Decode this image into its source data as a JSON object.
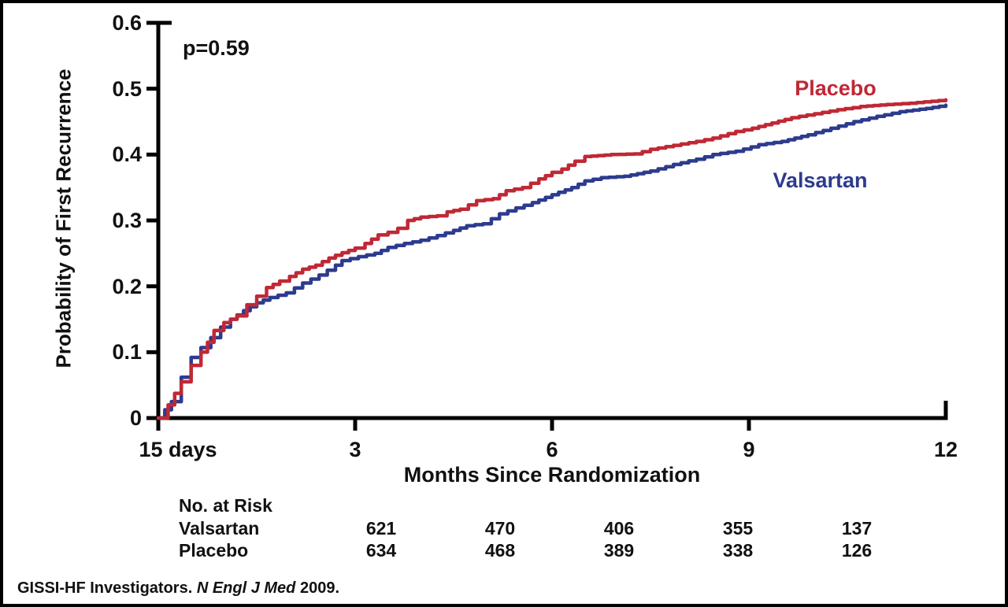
{
  "chart_data": {
    "type": "line",
    "subtype": "kaplan-meier-step",
    "p_value_label": "p=0.59",
    "xlabel": "Months Since Randomization",
    "ylabel": "Probability of First Recurrence",
    "xlim": [
      0,
      12
    ],
    "ylim": [
      0,
      0.6
    ],
    "grid": false,
    "legend_position": "inline-labels",
    "x_ticks": [
      {
        "label": "15 days",
        "month": 0
      },
      {
        "label": "3",
        "month": 3
      },
      {
        "label": "6",
        "month": 6
      },
      {
        "label": "9",
        "month": 9
      },
      {
        "label": "12",
        "month": 12
      }
    ],
    "y_ticks": [
      {
        "label": "0",
        "value": 0
      },
      {
        "label": "0.1",
        "value": 0.1
      },
      {
        "label": "0.2",
        "value": 0.2
      },
      {
        "label": "0.3",
        "value": 0.3
      },
      {
        "label": "0.4",
        "value": 0.4
      },
      {
        "label": "0.5",
        "value": 0.5
      },
      {
        "label": "0.6",
        "value": 0.6
      }
    ],
    "series": [
      {
        "name": "Placebo",
        "color": "#c02836",
        "points": [
          [
            0,
            0
          ],
          [
            0.15,
            0.02
          ],
          [
            0.35,
            0.055
          ],
          [
            0.5,
            0.08
          ],
          [
            0.65,
            0.1
          ],
          [
            0.75,
            0.115
          ],
          [
            0.85,
            0.133
          ],
          [
            1.0,
            0.145
          ],
          [
            1.2,
            0.155
          ],
          [
            1.35,
            0.172
          ],
          [
            1.5,
            0.185
          ],
          [
            1.65,
            0.198
          ],
          [
            1.85,
            0.208
          ],
          [
            2.0,
            0.215
          ],
          [
            2.2,
            0.226
          ],
          [
            2.4,
            0.232
          ],
          [
            2.6,
            0.243
          ],
          [
            2.8,
            0.251
          ],
          [
            3.0,
            0.258
          ],
          [
            3.15,
            0.265
          ],
          [
            3.35,
            0.278
          ],
          [
            3.5,
            0.282
          ],
          [
            3.65,
            0.288
          ],
          [
            3.8,
            0.3
          ],
          [
            4.0,
            0.305
          ],
          [
            4.25,
            0.307
          ],
          [
            4.4,
            0.313
          ],
          [
            4.6,
            0.317
          ],
          [
            4.85,
            0.33
          ],
          [
            5.1,
            0.333
          ],
          [
            5.3,
            0.345
          ],
          [
            5.55,
            0.35
          ],
          [
            5.8,
            0.363
          ],
          [
            6.0,
            0.373
          ],
          [
            6.15,
            0.378
          ],
          [
            6.35,
            0.39
          ],
          [
            6.5,
            0.397
          ],
          [
            6.9,
            0.4
          ],
          [
            7.25,
            0.401
          ],
          [
            7.5,
            0.408
          ],
          [
            7.85,
            0.414
          ],
          [
            8.2,
            0.42
          ],
          [
            8.45,
            0.425
          ],
          [
            8.8,
            0.435
          ],
          [
            9.05,
            0.44
          ],
          [
            9.35,
            0.448
          ],
          [
            9.65,
            0.456
          ],
          [
            10.0,
            0.462
          ],
          [
            10.35,
            0.468
          ],
          [
            10.7,
            0.473
          ],
          [
            11.1,
            0.476
          ],
          [
            11.45,
            0.478
          ],
          [
            12.0,
            0.483
          ]
        ]
      },
      {
        "name": "Valsartan",
        "color": "#2d3b8e",
        "points": [
          [
            0,
            0
          ],
          [
            0.2,
            0.025
          ],
          [
            0.35,
            0.062
          ],
          [
            0.5,
            0.092
          ],
          [
            0.65,
            0.107
          ],
          [
            0.8,
            0.122
          ],
          [
            0.95,
            0.138
          ],
          [
            1.1,
            0.15
          ],
          [
            1.3,
            0.163
          ],
          [
            1.5,
            0.175
          ],
          [
            1.7,
            0.183
          ],
          [
            1.95,
            0.19
          ],
          [
            2.2,
            0.205
          ],
          [
            2.45,
            0.217
          ],
          [
            2.7,
            0.232
          ],
          [
            2.8,
            0.239
          ],
          [
            3.05,
            0.245
          ],
          [
            3.3,
            0.25
          ],
          [
            3.5,
            0.259
          ],
          [
            3.75,
            0.265
          ],
          [
            4.0,
            0.27
          ],
          [
            4.25,
            0.277
          ],
          [
            4.5,
            0.285
          ],
          [
            4.7,
            0.292
          ],
          [
            4.95,
            0.295
          ],
          [
            5.2,
            0.31
          ],
          [
            5.45,
            0.319
          ],
          [
            5.7,
            0.327
          ],
          [
            6.0,
            0.339
          ],
          [
            6.3,
            0.35
          ],
          [
            6.5,
            0.36
          ],
          [
            6.75,
            0.365
          ],
          [
            7.1,
            0.367
          ],
          [
            7.5,
            0.375
          ],
          [
            7.85,
            0.385
          ],
          [
            8.2,
            0.393
          ],
          [
            8.45,
            0.4
          ],
          [
            8.8,
            0.405
          ],
          [
            9.15,
            0.415
          ],
          [
            9.5,
            0.42
          ],
          [
            9.9,
            0.43
          ],
          [
            10.25,
            0.44
          ],
          [
            10.6,
            0.45
          ],
          [
            10.95,
            0.458
          ],
          [
            11.3,
            0.465
          ],
          [
            11.7,
            0.47
          ],
          [
            12.0,
            0.475
          ]
        ]
      }
    ]
  },
  "risk_table": {
    "header": "No. at Risk",
    "rows": [
      {
        "label": "Valsartan",
        "values": [
          "621",
          "470",
          "406",
          "355",
          "137"
        ]
      },
      {
        "label": "Placebo",
        "values": [
          "634",
          "468",
          "389",
          "338",
          "126"
        ]
      }
    ]
  },
  "citation": {
    "prefix": "GISSI-HF Investigators. ",
    "journal": "N Engl J Med",
    "suffix": " 2009."
  },
  "style": {
    "axis_color": "#000000",
    "text_color": "#111111",
    "background": "#ffffff"
  }
}
